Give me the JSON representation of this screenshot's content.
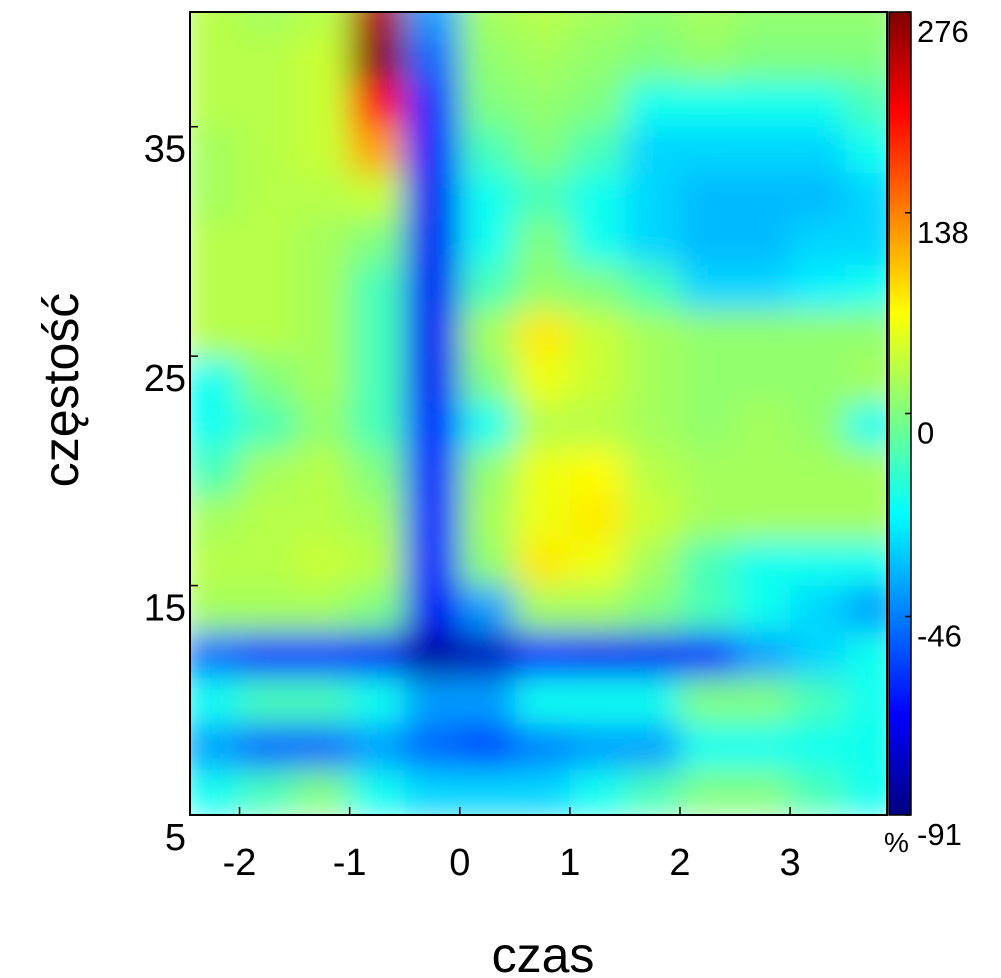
{
  "chart_data": {
    "type": "heatmap",
    "xlabel": "czas",
    "ylabel": "częstość",
    "colormap": "jet",
    "x": [
      -2.25,
      -1.75,
      -1.25,
      -0.75,
      -0.25,
      0.25,
      0.75,
      1.25,
      1.75,
      2.25,
      2.75,
      3.25,
      3.75
    ],
    "y": [
      6,
      8,
      10,
      12,
      14,
      16,
      18,
      20,
      22,
      24,
      26,
      28,
      30,
      32,
      34,
      36,
      38,
      40
    ],
    "z": [
      [
        -20,
        -10,
        0,
        -20,
        -30,
        -30,
        -30,
        -20,
        -10,
        0,
        0,
        -10,
        -20
      ],
      [
        -40,
        -50,
        -50,
        -40,
        -50,
        -55,
        -45,
        -40,
        -40,
        -20,
        -20,
        -20,
        -20
      ],
      [
        -20,
        -10,
        -10,
        -20,
        -40,
        -40,
        -20,
        -20,
        -20,
        0,
        0,
        -10,
        -20
      ],
      [
        -50,
        -60,
        -60,
        -70,
        -85,
        -80,
        -65,
        -70,
        -70,
        -65,
        -40,
        -30,
        -20
      ],
      [
        20,
        20,
        20,
        0,
        -70,
        -40,
        20,
        20,
        0,
        -10,
        -20,
        -30,
        -40
      ],
      [
        30,
        30,
        40,
        30,
        -65,
        10,
        80,
        60,
        20,
        -10,
        -20,
        -20,
        -20
      ],
      [
        20,
        30,
        30,
        20,
        -65,
        20,
        60,
        80,
        40,
        20,
        20,
        20,
        20
      ],
      [
        -10,
        20,
        30,
        0,
        -65,
        10,
        60,
        70,
        30,
        20,
        20,
        20,
        20
      ],
      [
        -20,
        -10,
        10,
        -10,
        -65,
        -20,
        30,
        30,
        20,
        10,
        20,
        10,
        -20
      ],
      [
        -20,
        0,
        20,
        -10,
        -70,
        0,
        60,
        40,
        20,
        10,
        10,
        10,
        20
      ],
      [
        30,
        30,
        20,
        -10,
        -70,
        20,
        80,
        40,
        20,
        10,
        10,
        10,
        10
      ],
      [
        30,
        30,
        20,
        -10,
        -70,
        -10,
        10,
        0,
        -10,
        -30,
        -30,
        -25,
        -20
      ],
      [
        30,
        30,
        20,
        0,
        -70,
        -20,
        0,
        -20,
        -30,
        -35,
        -35,
        -30,
        -30
      ],
      [
        20,
        30,
        30,
        40,
        -70,
        -20,
        -10,
        -20,
        -30,
        -35,
        -35,
        -35,
        -30
      ],
      [
        20,
        30,
        40,
        120,
        -65,
        -10,
        0,
        -10,
        -30,
        -30,
        -30,
        -30,
        -20
      ],
      [
        30,
        30,
        40,
        200,
        -60,
        0,
        10,
        0,
        -20,
        -20,
        -20,
        -20,
        -10
      ],
      [
        30,
        30,
        40,
        270,
        -50,
        10,
        20,
        10,
        0,
        10,
        0,
        0,
        0
      ],
      [
        30,
        20,
        30,
        250,
        -40,
        20,
        30,
        20,
        10,
        20,
        10,
        10,
        10
      ]
    ],
    "xlim": [
      -2.45,
      3.88
    ],
    "xticks": [
      -2,
      -1,
      0,
      1,
      2,
      3
    ],
    "ylim": [
      5,
      40
    ],
    "yticks": [
      5,
      15,
      25,
      35
    ],
    "colorbar": {
      "lim": [
        -91,
        276
      ],
      "ticks": [
        276,
        138,
        0,
        -46,
        -91
      ],
      "unit": "%"
    }
  }
}
